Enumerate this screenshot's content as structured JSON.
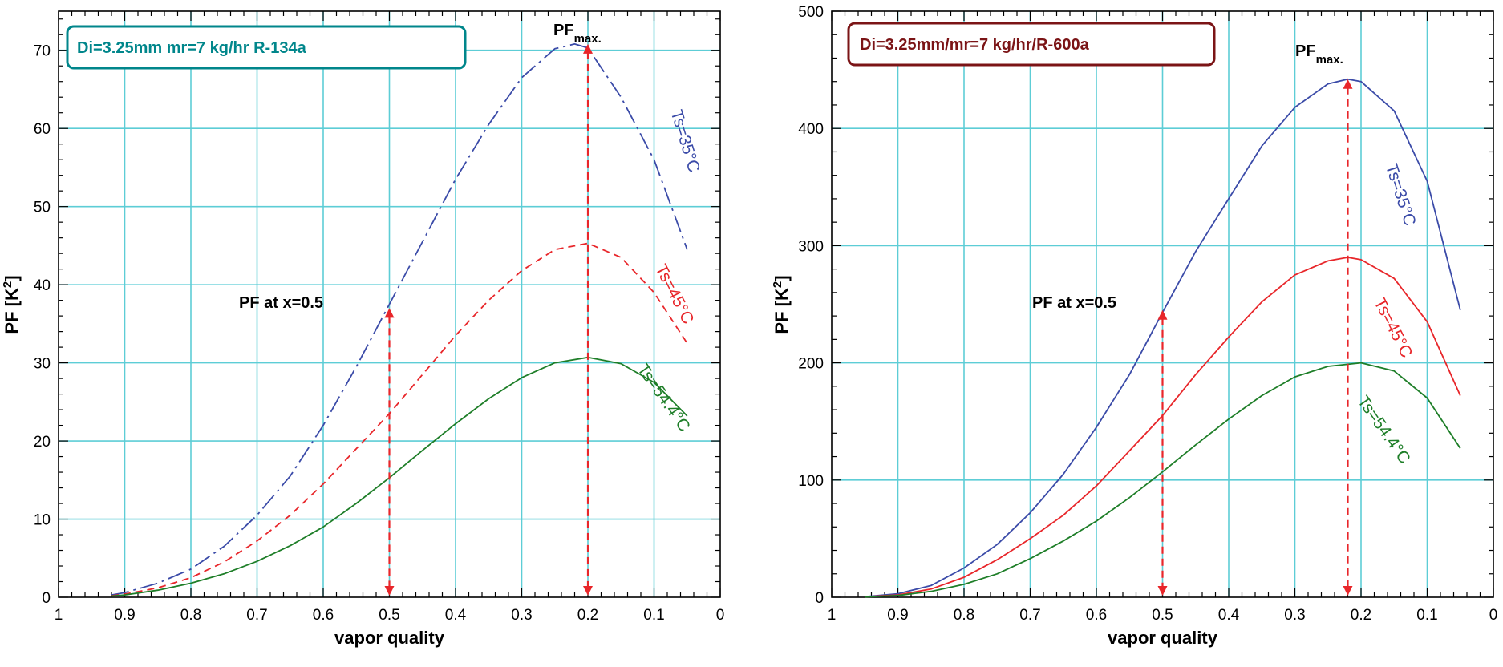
{
  "chart_data": [
    {
      "type": "line",
      "xlabel": "vapor quality",
      "ylabel": "PF  [K2]",
      "xlim": [
        1,
        0
      ],
      "ylim": [
        0,
        75
      ],
      "x_ticks": [
        "1",
        "0.9",
        "0.8",
        "0.7",
        "0.6",
        "0.5",
        "0.4",
        "0.3",
        "0.2",
        "0.1",
        "0"
      ],
      "y_ticks": [
        "0",
        "10",
        "20",
        "30",
        "40",
        "50",
        "60",
        "70"
      ],
      "annotation_box": "Di=3.25mm   mr=7 kg/hr   R-134a",
      "box_color": "#00868b",
      "pf_max_label": "PF",
      "pf_max_sub": "max.",
      "pf_x05_label": "PF at x=0.5",
      "arrow_color": "#e8262a",
      "series": [
        {
          "name": "Ts=35°C",
          "color": "#3b4ba8",
          "dash": "dashdot",
          "x": [
            0.92,
            0.9,
            0.85,
            0.8,
            0.75,
            0.7,
            0.65,
            0.6,
            0.55,
            0.5,
            0.45,
            0.4,
            0.35,
            0.3,
            0.25,
            0.22,
            0.2,
            0.15,
            0.1,
            0.05
          ],
          "y": [
            0.3,
            0.6,
            1.8,
            3.6,
            6.5,
            10.5,
            15.5,
            22,
            29.5,
            37.5,
            45.5,
            53.5,
            60.5,
            66.5,
            70.2,
            70.8,
            70.3,
            64,
            56,
            44.5
          ]
        },
        {
          "name": "Ts=45°C",
          "color": "#e8262a",
          "dash": "dashed",
          "x": [
            0.92,
            0.9,
            0.85,
            0.8,
            0.75,
            0.7,
            0.65,
            0.6,
            0.55,
            0.5,
            0.45,
            0.4,
            0.35,
            0.3,
            0.25,
            0.2,
            0.15,
            0.1,
            0.05
          ],
          "y": [
            0.2,
            0.4,
            1.2,
            2.5,
            4.5,
            7.2,
            10.5,
            14.5,
            19,
            23.5,
            28.5,
            33.5,
            38,
            41.8,
            44.5,
            45.3,
            43.5,
            39,
            32.5
          ]
        },
        {
          "name": "Ts=54.4°C",
          "color": "#1e7e28",
          "dash": "solid",
          "x": [
            0.92,
            0.9,
            0.85,
            0.8,
            0.75,
            0.7,
            0.65,
            0.6,
            0.55,
            0.5,
            0.45,
            0.4,
            0.35,
            0.3,
            0.25,
            0.2,
            0.15,
            0.1,
            0.05
          ],
          "y": [
            0.15,
            0.3,
            0.9,
            1.8,
            3.0,
            4.6,
            6.6,
            9.0,
            12.0,
            15.3,
            18.8,
            22.2,
            25.4,
            28.1,
            30.0,
            30.7,
            29.9,
            27.5,
            23.2
          ]
        }
      ]
    },
    {
      "type": "line",
      "xlabel": "vapor quality",
      "ylabel": "PF  [K2]",
      "xlim": [
        1,
        0
      ],
      "ylim": [
        0,
        500
      ],
      "x_ticks": [
        "1",
        "0.9",
        "0.8",
        "0.7",
        "0.6",
        "0.5",
        "0.4",
        "0.3",
        "0.2",
        "0.1",
        "0"
      ],
      "y_ticks": [
        "0",
        "100",
        "200",
        "300",
        "400",
        "500"
      ],
      "annotation_box": "Di=3.25mm/mr=7 kg/hr/R-600a",
      "box_color": "#7b1416",
      "pf_max_label": "PF",
      "pf_max_sub": "max.",
      "pf_x05_label": "PF at x=0.5",
      "arrow_color": "#e8262a",
      "series": [
        {
          "name": "Ts=35°C",
          "color": "#3b4ba8",
          "dash": "solid",
          "x": [
            0.95,
            0.9,
            0.85,
            0.8,
            0.75,
            0.7,
            0.65,
            0.6,
            0.55,
            0.5,
            0.45,
            0.4,
            0.35,
            0.3,
            0.25,
            0.22,
            0.2,
            0.15,
            0.1,
            0.05
          ],
          "y": [
            0.5,
            3,
            10,
            25,
            45,
            72,
            105,
            145,
            190,
            243,
            295,
            340,
            385,
            418,
            438,
            442,
            440,
            415,
            355,
            245
          ]
        },
        {
          "name": "Ts=45°C",
          "color": "#e8262a",
          "dash": "solid",
          "x": [
            0.95,
            0.9,
            0.85,
            0.8,
            0.75,
            0.7,
            0.65,
            0.6,
            0.55,
            0.5,
            0.45,
            0.4,
            0.35,
            0.3,
            0.25,
            0.22,
            0.2,
            0.15,
            0.1,
            0.05
          ],
          "y": [
            0.4,
            2,
            7,
            17,
            32,
            50,
            70,
            95,
            125,
            155,
            190,
            222,
            252,
            275,
            287,
            290,
            288,
            272,
            235,
            172
          ]
        },
        {
          "name": "Ts=54.4°C",
          "color": "#1e7e28",
          "dash": "solid",
          "x": [
            0.95,
            0.9,
            0.85,
            0.8,
            0.75,
            0.7,
            0.65,
            0.6,
            0.55,
            0.5,
            0.45,
            0.4,
            0.35,
            0.3,
            0.25,
            0.2,
            0.15,
            0.1,
            0.05
          ],
          "y": [
            0.3,
            1.5,
            5,
            11,
            20,
            33,
            48,
            65,
            85,
            107,
            130,
            152,
            172,
            188,
            197,
            200,
            193,
            170,
            127
          ]
        }
      ]
    }
  ]
}
